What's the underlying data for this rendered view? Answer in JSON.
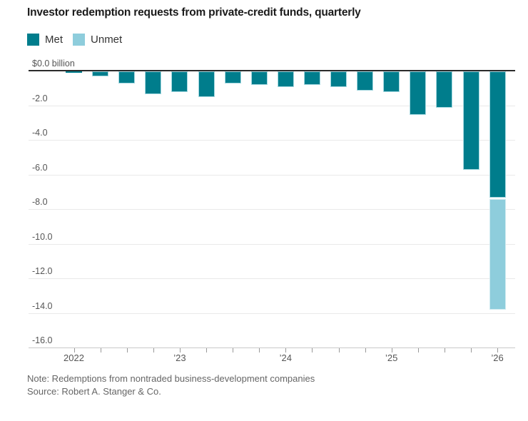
{
  "title": "Investor redemption requests from private-credit funds, quarterly",
  "legend": [
    {
      "label": "Met",
      "color": "#007d8c"
    },
    {
      "label": "Unmet",
      "color": "#8ecddc"
    }
  ],
  "note": "Note: Redemptions from nontraded business-development companies",
  "source": "Source: Robert A. Stanger & Co.",
  "colors": {
    "met": "#007d8c",
    "unmet": "#8ecddc",
    "met_border": "#a5d8e0",
    "unmet_border": "#cfeaf0",
    "zero_line": "#2b2b2b",
    "gridline": "#e9e9e9",
    "axis_text": "#555555",
    "note_text": "#666666"
  },
  "chart_data": {
    "type": "bar",
    "stacked": true,
    "title": "Investor redemption requests from private-credit funds, quarterly",
    "units": "billions USD",
    "categories": [
      "2022 Q1",
      "2022 Q2",
      "2022 Q3",
      "2022 Q4",
      "2023 Q1",
      "2023 Q2",
      "2023 Q3",
      "2023 Q4",
      "2024 Q1",
      "2024 Q2",
      "2024 Q3",
      "2024 Q4",
      "2025 Q1",
      "2025 Q2",
      "2025 Q3",
      "2025 Q4",
      "2026 Q1"
    ],
    "series": [
      {
        "name": "Met",
        "values": [
          -0.1,
          -0.3,
          -0.7,
          -1.3,
          -1.2,
          -1.5,
          -0.7,
          -0.8,
          -0.9,
          -0.8,
          -0.9,
          -1.1,
          -1.2,
          -2.5,
          -2.1,
          -5.7,
          -7.3
        ]
      },
      {
        "name": "Unmet",
        "values": [
          0,
          0,
          0,
          0,
          0,
          0,
          0,
          0,
          0,
          0,
          0,
          0,
          0,
          0,
          0,
          0,
          -6.5
        ]
      }
    ],
    "y_ticks": [
      {
        "label": "$0.0 billion",
        "value": 0
      },
      {
        "label": "-2.0",
        "value": -2
      },
      {
        "label": "-4.0",
        "value": -4
      },
      {
        "label": "-6.0",
        "value": -6
      },
      {
        "label": "-8.0",
        "value": -8
      },
      {
        "label": "-10.0",
        "value": -10
      },
      {
        "label": "-12.0",
        "value": -12
      },
      {
        "label": "-14.0",
        "value": -14
      },
      {
        "label": "-16.0",
        "value": -16
      }
    ],
    "x_year_labels": [
      {
        "label": "2022",
        "index": 0
      },
      {
        "label": "’23",
        "index": 4
      },
      {
        "label": "’24",
        "index": 8
      },
      {
        "label": "’25",
        "index": 12
      },
      {
        "label": "’26",
        "index": 16
      }
    ],
    "ylim": [
      -16,
      0
    ],
    "grid": true,
    "legend_position": "top-left"
  }
}
